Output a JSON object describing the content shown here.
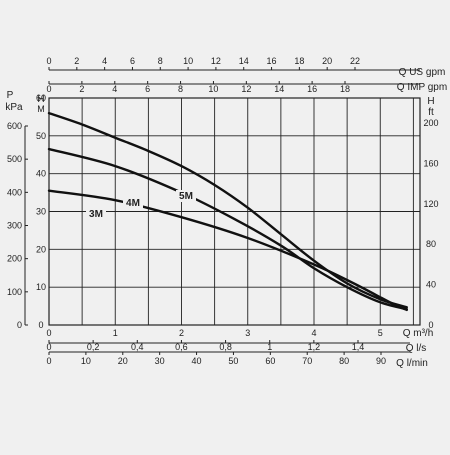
{
  "chart_data": {
    "type": "line",
    "series": [
      {
        "name": "3M",
        "values": [
          [
            0,
            35.5
          ],
          [
            1,
            33
          ],
          [
            2,
            28.5
          ],
          [
            3,
            23
          ],
          [
            4,
            16
          ],
          [
            4.6,
            11
          ],
          [
            5.2,
            5.5
          ],
          [
            5.4,
            4
          ]
        ]
      },
      {
        "name": "4M",
        "values": [
          [
            0,
            46.5
          ],
          [
            1,
            42
          ],
          [
            2,
            35
          ],
          [
            2.8,
            28
          ],
          [
            3.5,
            21
          ],
          [
            4,
            15
          ],
          [
            4.5,
            10
          ],
          [
            5,
            6
          ],
          [
            5.4,
            4.2
          ]
        ]
      },
      {
        "name": "5M",
        "values": [
          [
            0,
            56
          ],
          [
            0.5,
            53
          ],
          [
            1,
            49.5
          ],
          [
            1.5,
            46
          ],
          [
            2,
            42
          ],
          [
            2.5,
            37
          ],
          [
            3,
            31
          ],
          [
            3.5,
            24
          ],
          [
            4,
            17
          ],
          [
            4.5,
            11
          ],
          [
            5,
            6.8
          ],
          [
            5.4,
            4.7
          ]
        ]
      }
    ],
    "axes": {
      "us_gpm": {
        "label": "Q US gpm",
        "ticks": [
          "0",
          "2",
          "4",
          "6",
          "8",
          "10",
          "12",
          "14",
          "16",
          "18",
          "20",
          "22"
        ]
      },
      "imp_gpm": {
        "label": "Q IMP gpm",
        "ticks": [
          "0",
          "2",
          "4",
          "6",
          "8",
          "10",
          "12",
          "14",
          "16",
          "18"
        ]
      },
      "m3h": {
        "label": "Q m³/h",
        "ticks": [
          "0",
          "1",
          "2",
          "3",
          "4",
          "5"
        ],
        "range": [
          0,
          5.6
        ]
      },
      "ls": {
        "label": "Q l/s",
        "ticks": [
          "0",
          "0,2",
          "0,4",
          "0,6",
          "0,8",
          "1",
          "1,2",
          "1,4"
        ]
      },
      "lmin": {
        "label": "Q l/min",
        "ticks": [
          "0",
          "10",
          "20",
          "30",
          "40",
          "50",
          "60",
          "70",
          "80",
          "90"
        ]
      },
      "head_m": {
        "label_top": "H",
        "label_bottom": "M",
        "ticks": [
          "0",
          "10",
          "20",
          "30",
          "40",
          "50",
          "60"
        ],
        "range": [
          0,
          60
        ]
      },
      "kpa": {
        "label_top": "P",
        "label_bottom": "kPa",
        "ticks": [
          "0",
          "100",
          "200",
          "300",
          "400",
          "500",
          "600"
        ]
      },
      "head_ft": {
        "label_top": "H",
        "label_bottom": "ft",
        "ticks": [
          "0",
          "40",
          "80",
          "120",
          "160",
          "200"
        ]
      }
    }
  }
}
